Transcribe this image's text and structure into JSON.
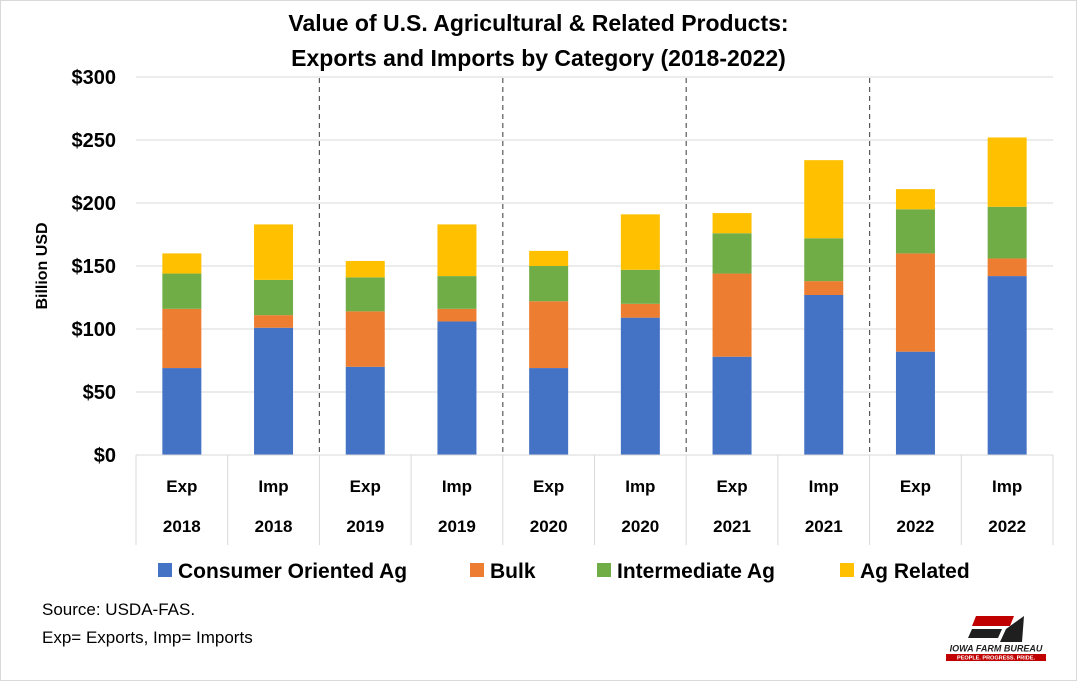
{
  "title_line1": "Value of U.S. Agricultural & Related Products:",
  "title_line2": "Exports and Imports by Category  (2018-2022)",
  "source": "Source: USDA-FAS.",
  "note": "Exp= Exports, Imp= Imports",
  "logo": {
    "text": "IOWA FARM BUREAU",
    "tagline": "PEOPLE. PROGRESS. PRIDE.",
    "mark": "FB"
  },
  "chart_data": {
    "type": "bar",
    "stacked": true,
    "title": "Value of U.S. Agricultural & Related Products: Exports and Imports by Category  (2018-2022)",
    "ylabel": "Billion USD",
    "ylim": [
      0,
      300
    ],
    "yticks": [
      "$0",
      "$50",
      "$100",
      "$150",
      "$200",
      "$250",
      "$300"
    ],
    "ytick_values": [
      0,
      50,
      100,
      150,
      200,
      250,
      300
    ],
    "grid": true,
    "legend_position": "bottom",
    "categories": [
      {
        "flow": "Exp",
        "year": "2018"
      },
      {
        "flow": "Imp",
        "year": "2018"
      },
      {
        "flow": "Exp",
        "year": "2019"
      },
      {
        "flow": "Imp",
        "year": "2019"
      },
      {
        "flow": "Exp",
        "year": "2020"
      },
      {
        "flow": "Imp",
        "year": "2020"
      },
      {
        "flow": "Exp",
        "year": "2021"
      },
      {
        "flow": "Imp",
        "year": "2021"
      },
      {
        "flow": "Exp",
        "year": "2022"
      },
      {
        "flow": "Imp",
        "year": "2022"
      }
    ],
    "series": [
      {
        "name": "Consumer Oriented Ag",
        "color": "#4472C4",
        "values": [
          69,
          101,
          70,
          106,
          69,
          109,
          78,
          127,
          82,
          142
        ]
      },
      {
        "name": "Bulk",
        "color": "#ED7D31",
        "values": [
          47,
          10,
          44,
          10,
          53,
          11,
          66,
          11,
          78,
          14
        ]
      },
      {
        "name": "Intermediate Ag",
        "color": "#70AD47",
        "values": [
          28,
          28,
          27,
          26,
          28,
          27,
          32,
          34,
          35,
          41
        ]
      },
      {
        "name": "Ag Related",
        "color": "#FFC000",
        "values": [
          16,
          44,
          13,
          41,
          12,
          44,
          16,
          62,
          16,
          55
        ]
      }
    ]
  }
}
